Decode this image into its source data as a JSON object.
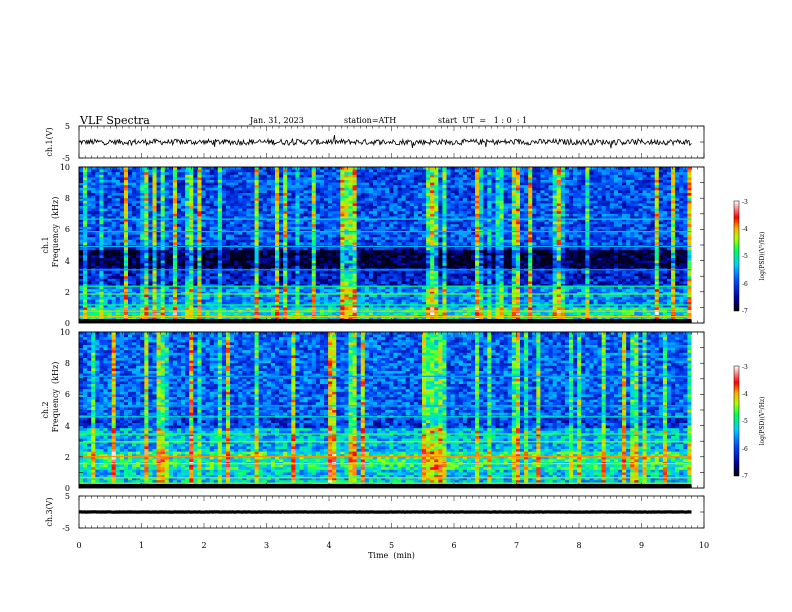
{
  "header": {
    "title": "VLF  Spectra",
    "date": "Jan. 31, 2023",
    "station": "station=ATH",
    "start_ut": "start  UT  =   1 : 0  : 1"
  },
  "chart_data": [
    {
      "type": "line",
      "panel": "ch1-waveform",
      "ylabel": "ch.1(V)",
      "y_ticks": [
        "5",
        "-5"
      ],
      "ylim": [
        -5,
        5
      ],
      "xlim": [
        0,
        10
      ],
      "baseline": 0,
      "noise_amplitude": 0.9,
      "data_end_min": 9.8
    },
    {
      "type": "heatmap",
      "panel": "ch1-spectrogram",
      "ylabel": "Frequency  (kHz)",
      "channel_label": "ch.1",
      "y_ticks": [
        "10",
        "8",
        "6",
        "4",
        "2",
        "0"
      ],
      "ylim": [
        0,
        10
      ],
      "xlim": [
        0,
        10
      ],
      "colorbar": {
        "label": "log(PSD)(V²/Hz)",
        "ticks": [
          "-3",
          "-4",
          "-5",
          "-6",
          "-7"
        ],
        "range": [
          -7,
          -3
        ]
      }
    },
    {
      "type": "heatmap",
      "panel": "ch2-spectrogram",
      "ylabel": "Frequency  (kHz)",
      "channel_label": "ch.2",
      "y_ticks": [
        "10",
        "8",
        "6",
        "4",
        "2",
        "0"
      ],
      "ylim": [
        0,
        10
      ],
      "xlim": [
        0,
        10
      ],
      "colorbar": {
        "label": "log(PSD)(V²/Hz)",
        "ticks": [
          "-3",
          "-4",
          "-5",
          "-6",
          "-7"
        ],
        "range": [
          -7,
          -3
        ]
      }
    },
    {
      "type": "line",
      "panel": "ch3-waveform",
      "ylabel": "ch.3(V)",
      "y_ticks": [
        "5",
        "-5"
      ],
      "ylim": [
        -5,
        5
      ],
      "xlim": [
        0,
        10
      ],
      "baseline": 0,
      "noise_amplitude": 0.05,
      "data_end_min": 9.8
    }
  ],
  "x_axis": {
    "label": "Time  (min)",
    "ticks": [
      "0",
      "1",
      "2",
      "3",
      "4",
      "5",
      "6",
      "7",
      "8",
      "9",
      "10"
    ]
  },
  "colors": {
    "waveform": "#000000",
    "scale": [
      "#000030",
      "#0000a0",
      "#0050ff",
      "#00d0ff",
      "#00ff60",
      "#b0ff00",
      "#ffb000",
      "#ff0000",
      "#ffffff"
    ]
  }
}
